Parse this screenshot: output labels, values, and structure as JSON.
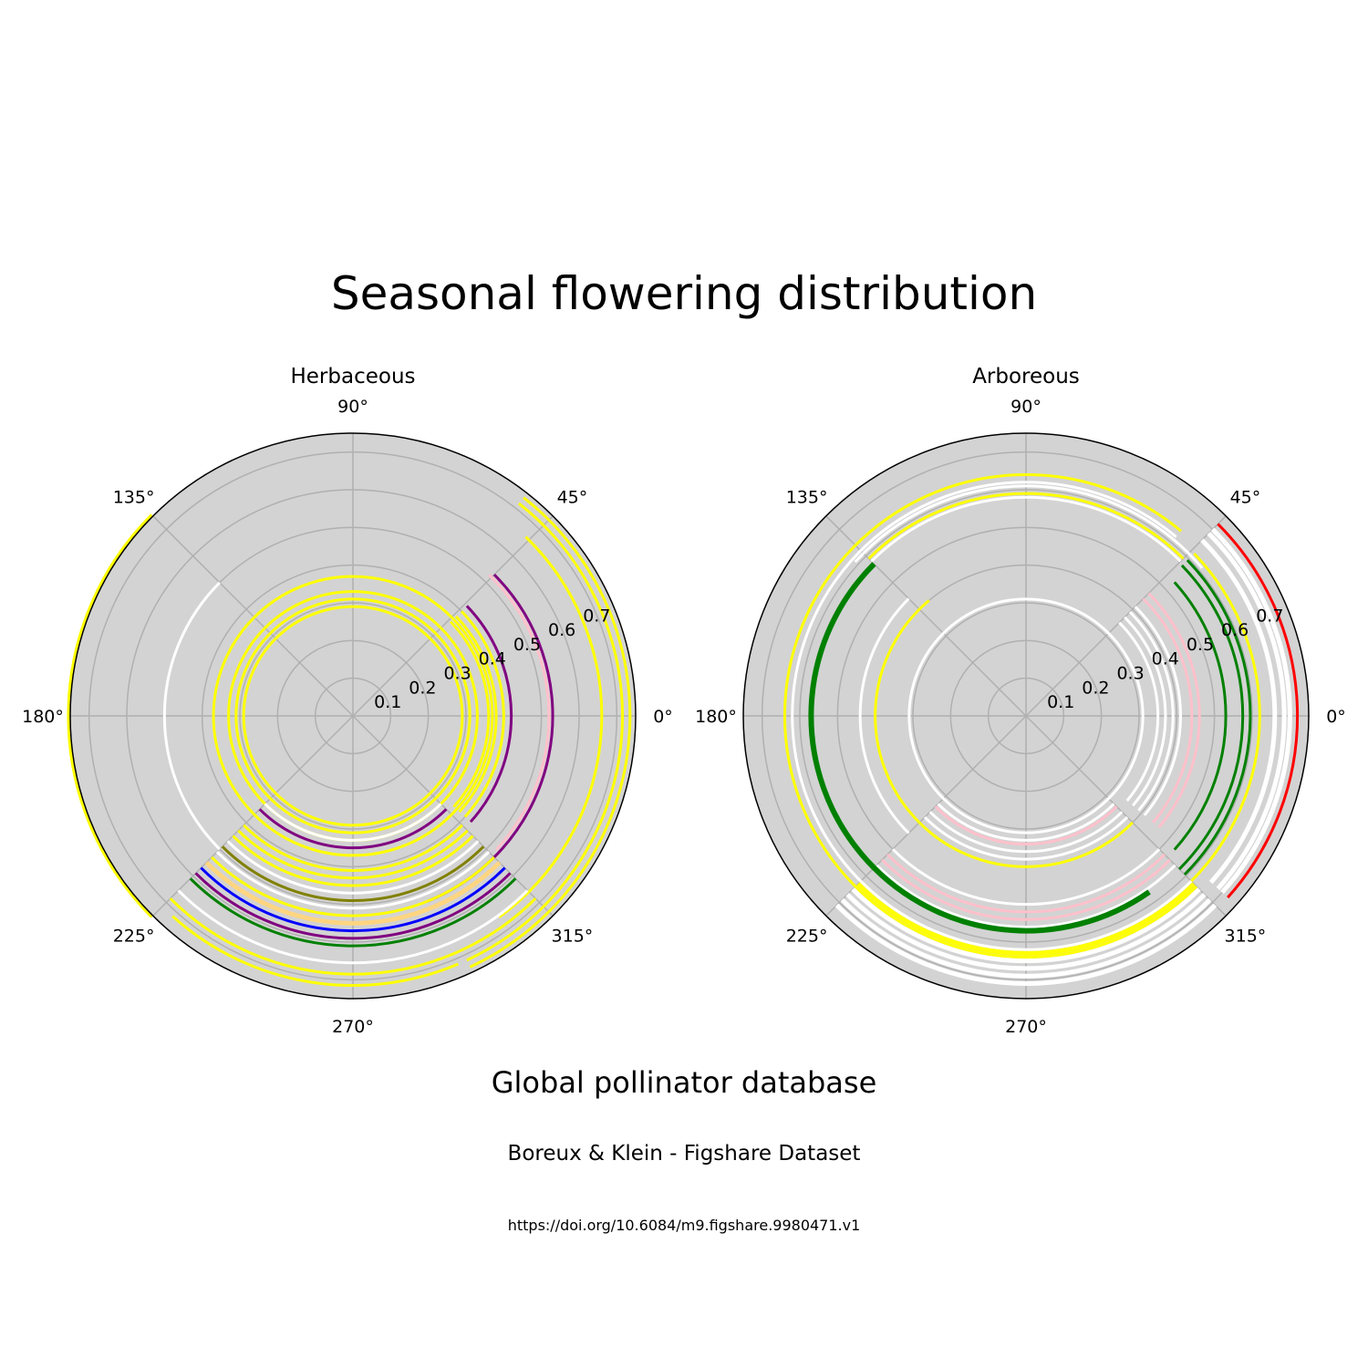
{
  "figure": {
    "title": "Seasonal flowering distribution",
    "subtitle": "Global pollinator database",
    "credit": "Boreux & Klein - Figshare Dataset",
    "doi": "https://doi.org/10.6084/m9.figshare.9980471.v1"
  },
  "colors": {
    "background": "#d3d3d3",
    "grid": "#b0b0b0",
    "yellow": "#ffff00",
    "white": "#ffffff",
    "purple": "#800080",
    "pink": "#ffc0cb",
    "blue": "#0000ff",
    "green": "#008000",
    "orange": "#ffd580",
    "olive": "#808000",
    "red": "#ff0000"
  },
  "chart_data": [
    {
      "type": "polar",
      "title": "Herbaceous",
      "rlim": [
        0,
        0.75
      ],
      "rticks": [
        0.1,
        0.2,
        0.3,
        0.4,
        0.5,
        0.6,
        0.7
      ],
      "rtick_labels": [
        "0.1",
        "0.2",
        "0.3",
        "0.4",
        "0.5",
        "0.6",
        "0.7"
      ],
      "angle_ticks": [
        0,
        45,
        90,
        135,
        180,
        225,
        270,
        315
      ],
      "angle_tick_labels": [
        "0°",
        "45°",
        "90°",
        "135°",
        "180°",
        "225°",
        "270°",
        "315°"
      ],
      "grid": true,
      "arcs": [
        {
          "r": 0.735,
          "start": 295,
          "end": 52,
          "color": "yellow",
          "width": 3
        },
        {
          "r": 0.715,
          "start": 295,
          "end": 52,
          "color": "yellow",
          "width": 3
        },
        {
          "r": 0.715,
          "start": 228,
          "end": 293,
          "color": "yellow",
          "width": 3
        },
        {
          "r": 0.755,
          "start": 135,
          "end": 225,
          "color": "yellow",
          "width": 3
        },
        {
          "r": 0.66,
          "start": 306,
          "end": 46,
          "color": "yellow",
          "width": 3
        },
        {
          "r": 0.52,
          "start": 317,
          "end": 46,
          "color": "pink",
          "width": 3
        },
        {
          "r": 0.53,
          "start": 292,
          "end": 45,
          "color": "purple",
          "width": 3
        },
        {
          "r": 0.42,
          "start": 318,
          "end": 44,
          "color": "purple",
          "width": 3
        },
        {
          "r": 0.4,
          "start": 318,
          "end": 44,
          "color": "yellow",
          "width": 3
        },
        {
          "r": 0.38,
          "start": 318,
          "end": 44,
          "color": "yellow",
          "width": 3
        },
        {
          "r": 0.36,
          "start": 318,
          "end": 44,
          "color": "yellow",
          "width": 3
        },
        {
          "r": 0.33,
          "start": 0,
          "end": 360,
          "color": "yellow",
          "width": 3
        },
        {
          "r": 0.31,
          "start": 0,
          "end": 360,
          "color": "yellow",
          "width": 3
        },
        {
          "r": 0.29,
          "start": 0,
          "end": 360,
          "color": "yellow",
          "width": 3
        },
        {
          "r": 0.37,
          "start": 0,
          "end": 360,
          "color": "yellow",
          "width": 3
        },
        {
          "r": 0.5,
          "start": 135,
          "end": 225,
          "color": "white",
          "width": 3
        },
        {
          "r": 0.35,
          "start": 225,
          "end": 315,
          "color": "purple",
          "width": 3
        },
        {
          "r": 0.33,
          "start": 225,
          "end": 315,
          "color": "white",
          "width": 3
        },
        {
          "r": 0.41,
          "start": 225,
          "end": 315,
          "color": "yellow",
          "width": 3
        },
        {
          "r": 0.43,
          "start": 225,
          "end": 315,
          "color": "yellow",
          "width": 3
        },
        {
          "r": 0.45,
          "start": 225,
          "end": 315,
          "color": "yellow",
          "width": 3
        },
        {
          "r": 0.47,
          "start": 225,
          "end": 315,
          "color": "white",
          "width": 3
        },
        {
          "r": 0.49,
          "start": 225,
          "end": 315,
          "color": "olive",
          "width": 3
        },
        {
          "r": 0.51,
          "start": 225,
          "end": 315,
          "color": "white",
          "width": 3
        },
        {
          "r": 0.53,
          "start": 225,
          "end": 315,
          "color": "yellow",
          "width": 3
        },
        {
          "r": 0.55,
          "start": 225,
          "end": 315,
          "color": "orange",
          "width": 5
        },
        {
          "r": 0.57,
          "start": 225,
          "end": 315,
          "color": "blue",
          "width": 3
        },
        {
          "r": 0.59,
          "start": 225,
          "end": 315,
          "color": "purple",
          "width": 3
        },
        {
          "r": 0.61,
          "start": 225,
          "end": 315,
          "color": "green",
          "width": 3
        },
        {
          "r": 0.655,
          "start": 225,
          "end": 315,
          "color": "white",
          "width": 3
        },
        {
          "r": 0.685,
          "start": 225,
          "end": 315,
          "color": "yellow",
          "width": 3
        }
      ]
    },
    {
      "type": "polar",
      "title": "Arboreous",
      "rlim": [
        0,
        0.75
      ],
      "rticks": [
        0.1,
        0.2,
        0.3,
        0.4,
        0.5,
        0.6,
        0.7
      ],
      "rtick_labels": [
        "0.1",
        "0.2",
        "0.3",
        "0.4",
        "0.5",
        "0.6",
        "0.7"
      ],
      "angle_ticks": [
        0,
        45,
        90,
        135,
        180,
        225,
        270,
        315
      ],
      "angle_tick_labels": [
        "0°",
        "45°",
        "90°",
        "135°",
        "180°",
        "225°",
        "270°",
        "315°"
      ],
      "grid": true,
      "arcs": [
        {
          "r": 0.72,
          "start": 318,
          "end": 45,
          "color": "red",
          "width": 3
        },
        {
          "r": 0.7,
          "start": 318,
          "end": 45,
          "color": "white",
          "width": 5
        },
        {
          "r": 0.685,
          "start": 318,
          "end": 45,
          "color": "white",
          "width": 5
        },
        {
          "r": 0.66,
          "start": 318,
          "end": 45,
          "color": "white",
          "width": 5
        },
        {
          "r": 0.62,
          "start": 315,
          "end": 44,
          "color": "yellow",
          "width": 3
        },
        {
          "r": 0.595,
          "start": 315,
          "end": 44,
          "color": "green",
          "width": 3
        },
        {
          "r": 0.575,
          "start": 315,
          "end": 44,
          "color": "green",
          "width": 3
        },
        {
          "r": 0.53,
          "start": 318,
          "end": 42,
          "color": "green",
          "width": 3
        },
        {
          "r": 0.46,
          "start": 320,
          "end": 45,
          "color": "pink",
          "width": 3
        },
        {
          "r": 0.44,
          "start": 320,
          "end": 45,
          "color": "pink",
          "width": 3
        },
        {
          "r": 0.41,
          "start": 320,
          "end": 45,
          "color": "white",
          "width": 3
        },
        {
          "r": 0.39,
          "start": 320,
          "end": 45,
          "color": "white",
          "width": 3
        },
        {
          "r": 0.37,
          "start": 320,
          "end": 45,
          "color": "white",
          "width": 3
        },
        {
          "r": 0.35,
          "start": 320,
          "end": 45,
          "color": "white",
          "width": 3
        },
        {
          "r": 0.31,
          "start": 0,
          "end": 360,
          "color": "white",
          "width": 3
        },
        {
          "r": 0.4,
          "start": 130,
          "end": 225,
          "color": "yellow",
          "width": 3
        },
        {
          "r": 0.44,
          "start": 135,
          "end": 225,
          "color": "white",
          "width": 3
        },
        {
          "r": 0.36,
          "start": 225,
          "end": 315,
          "color": "white",
          "width": 3
        },
        {
          "r": 0.33,
          "start": 225,
          "end": 315,
          "color": "white",
          "width": 3
        },
        {
          "r": 0.34,
          "start": 225,
          "end": 315,
          "color": "pink",
          "width": 3
        },
        {
          "r": 0.38,
          "start": 225,
          "end": 315,
          "color": "white",
          "width": 3
        },
        {
          "r": 0.4,
          "start": 225,
          "end": 315,
          "color": "yellow",
          "width": 3
        },
        {
          "r": 0.5,
          "start": 225,
          "end": 315,
          "color": "white",
          "width": 3
        },
        {
          "r": 0.52,
          "start": 225,
          "end": 315,
          "color": "pink",
          "width": 3
        },
        {
          "r": 0.54,
          "start": 225,
          "end": 315,
          "color": "pink",
          "width": 3
        },
        {
          "r": 0.56,
          "start": 225,
          "end": 315,
          "color": "white",
          "width": 3
        },
        {
          "r": 0.64,
          "start": 50,
          "end": 315,
          "color": "yellow",
          "width": 3
        },
        {
          "r": 0.62,
          "start": 50,
          "end": 315,
          "color": "white",
          "width": 3
        },
        {
          "r": 0.61,
          "start": 40,
          "end": 138,
          "color": "white",
          "width": 3
        },
        {
          "r": 0.59,
          "start": 45,
          "end": 135,
          "color": "yellow",
          "width": 3
        },
        {
          "r": 0.58,
          "start": 45,
          "end": 135,
          "color": "white",
          "width": 3
        },
        {
          "r": 0.57,
          "start": 135,
          "end": 305,
          "color": "green",
          "width": 6
        },
        {
          "r": 0.63,
          "start": 225,
          "end": 315,
          "color": "yellow",
          "width": 5
        },
        {
          "r": 0.65,
          "start": 225,
          "end": 315,
          "color": "white",
          "width": 5
        },
        {
          "r": 0.67,
          "start": 225,
          "end": 315,
          "color": "white",
          "width": 5
        },
        {
          "r": 0.69,
          "start": 225,
          "end": 315,
          "color": "white",
          "width": 5
        },
        {
          "r": 0.71,
          "start": 225,
          "end": 315,
          "color": "white",
          "width": 5
        }
      ]
    }
  ]
}
